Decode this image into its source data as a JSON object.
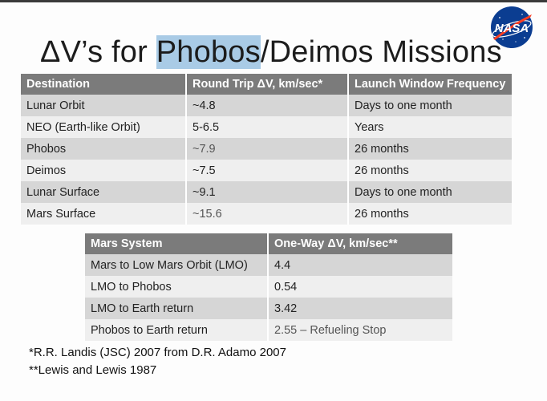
{
  "slide": {
    "title_pre": "ΔV’s for ",
    "title_highlight": "Phobos",
    "title_post": "/Deimos Missions",
    "logo_text": "NASA"
  },
  "main_table": {
    "headers": [
      "Destination",
      "Round Trip ΔV, km/sec*",
      "Launch Window Frequency"
    ],
    "rows": [
      [
        "Lunar Orbit",
        "~4.8",
        "Days to one month"
      ],
      [
        "NEO (Earth-like Orbit)",
        "5-6.5",
        "Years"
      ],
      [
        "Phobos",
        "~7.9",
        "26 months"
      ],
      [
        "Deimos",
        "~7.5",
        "26 months"
      ],
      [
        "Lunar Surface",
        "~9.1",
        "Days to one month"
      ],
      [
        "Mars Surface",
        "~15.6",
        "26 months"
      ]
    ]
  },
  "mars_table": {
    "headers": [
      "Mars System",
      "One-Way ΔV, km/sec**"
    ],
    "rows": [
      [
        "Mars to Low Mars Orbit (LMO)",
        "4.4"
      ],
      [
        "LMO to Phobos",
        "0.54"
      ],
      [
        "LMO to Earth return",
        "3.42"
      ],
      [
        "Phobos to Earth return",
        "2.55 – Refueling Stop"
      ]
    ]
  },
  "footnotes": [
    "*R.R. Landis (JSC) 2007 from D.R. Adamo 2007",
    "**Lewis and Lewis 1987"
  ],
  "colors": {
    "header_bg": "#7b7b7b",
    "row_dark": "#d6d6d6",
    "row_light": "#efefef",
    "highlight": "#a9cbe6",
    "nasa_blue": "#0b3d91",
    "nasa_red": "#fc3d21"
  }
}
